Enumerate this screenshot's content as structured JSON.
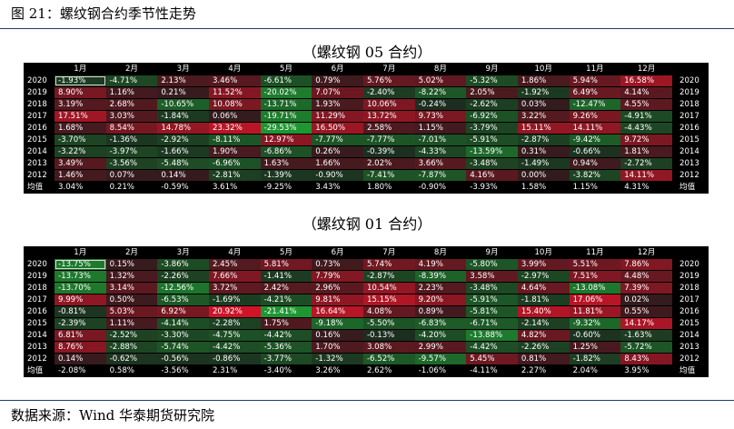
{
  "figure": {
    "title": "图 21：螺纹钢合约季节性走势",
    "source": "数据来源：Wind  华泰期货研究院"
  },
  "months": [
    "1月",
    "2月",
    "3月",
    "4月",
    "5月",
    "6月",
    "7月",
    "8月",
    "9月",
    "10月",
    "11月",
    "12月"
  ],
  "tables": [
    {
      "title": "（螺纹钢 05 合约）",
      "rows": [
        {
          "year": "2020",
          "vals": [
            -1.93,
            -4.71,
            2.13,
            3.46,
            -6.61,
            0.79,
            5.76,
            5.02,
            -5.32,
            1.86,
            5.94,
            16.58
          ],
          "labels": [
            "-1.93%",
            "-4.71%",
            "2.13%",
            "3.46%",
            "-6.61%",
            "0.79%",
            "5.76%",
            "5.02%",
            "-5.32%",
            "1.86%",
            "5.94%",
            "16.58%"
          ]
        },
        {
          "year": "2019",
          "vals": [
            8.9,
            1.16,
            0.21,
            11.52,
            -20.02,
            7.07,
            -2.4,
            -8.22,
            2.05,
            -1.92,
            6.49,
            4.14
          ],
          "labels": [
            "8.90%",
            "1.16%",
            "0.21%",
            "11.52%",
            "-20.02%",
            "7.07%",
            "-2.40%",
            "-8.22%",
            "2.05%",
            "-1.92%",
            "6.49%",
            "4.14%"
          ]
        },
        {
          "year": "2018",
          "vals": [
            3.19,
            2.68,
            -10.65,
            10.08,
            -13.71,
            1.93,
            10.06,
            -0.24,
            -2.62,
            0.03,
            -12.47,
            4.55
          ],
          "labels": [
            "3.19%",
            "2.68%",
            "-10.65%",
            "10.08%",
            "-13.71%",
            "1.93%",
            "10.06%",
            "-0.24%",
            "-2.62%",
            "0.03%",
            "-12.47%",
            "4.55%"
          ]
        },
        {
          "year": "2017",
          "vals": [
            17.51,
            3.03,
            -1.84,
            0.06,
            -19.71,
            11.29,
            13.72,
            9.73,
            -6.92,
            3.22,
            9.26,
            -4.91
          ],
          "labels": [
            "17.51%",
            "3.03%",
            "-1.84%",
            "0.06%",
            "-19.71%",
            "11.29%",
            "13.72%",
            "9.73%",
            "-6.92%",
            "3.22%",
            "9.26%",
            "-4.91%"
          ]
        },
        {
          "year": "2016",
          "vals": [
            1.68,
            8.54,
            14.78,
            23.32,
            -29.53,
            16.5,
            2.58,
            1.15,
            -3.79,
            15.11,
            14.11,
            -4.43
          ],
          "labels": [
            "1.68%",
            "8.54%",
            "14.78%",
            "23.32%",
            "-29.53%",
            "16.50%",
            "2.58%",
            "1.15%",
            "-3.79%",
            "15.11%",
            "14.11%",
            "-4.43%"
          ]
        },
        {
          "year": "2015",
          "vals": [
            -3.7,
            -1.36,
            -2.92,
            -8.11,
            12.97,
            -7.77,
            -7.77,
            -7.01,
            -5.91,
            -2.87,
            -9.42,
            9.72
          ],
          "labels": [
            "-3.70%",
            "-1.36%",
            "-2.92%",
            "-8.11%",
            "12.97%",
            "-7.77%",
            "-7.77%",
            "-7.01%",
            "-5.91%",
            "-2.87%",
            "-9.42%",
            "9.72%"
          ]
        },
        {
          "year": "2014",
          "vals": [
            -3.22,
            -3.97,
            -1.66,
            1.9,
            -6.86,
            0.26,
            -0.39,
            -4.33,
            -13.59,
            0.31,
            -0.66,
            1.81
          ],
          "labels": [
            "-3.22%",
            "-3.97%",
            "-1.66%",
            "1.90%",
            "-6.86%",
            "0.26%",
            "-0.39%",
            "-4.33%",
            "-13.59%",
            "0.31%",
            "-0.66%",
            "1.81%"
          ]
        },
        {
          "year": "2013",
          "vals": [
            3.49,
            -3.56,
            -5.48,
            -6.96,
            1.63,
            1.66,
            2.02,
            3.66,
            -3.48,
            -1.49,
            0.94,
            -2.72
          ],
          "labels": [
            "3.49%",
            "-3.56%",
            "-5.48%",
            "-6.96%",
            "1.63%",
            "1.66%",
            "2.02%",
            "3.66%",
            "-3.48%",
            "-1.49%",
            "0.94%",
            "-2.72%"
          ]
        },
        {
          "year": "2012",
          "vals": [
            1.46,
            0.07,
            0.14,
            -2.81,
            -1.39,
            -0.9,
            -7.41,
            -7.87,
            4.16,
            0.0,
            -3.82,
            14.11
          ],
          "labels": [
            "1.46%",
            "0.07%",
            "0.14%",
            "-2.81%",
            "-1.39%",
            "-0.90%",
            "-7.41%",
            "-7.87%",
            "4.16%",
            "0.00%",
            "-3.82%",
            "14.11%"
          ]
        }
      ],
      "avg": {
        "year": "均值",
        "labels": [
          "3.04%",
          "0.21%",
          "-0.59%",
          "3.61%",
          "-9.25%",
          "3.43%",
          "1.80%",
          "-0.90%",
          "-3.93%",
          "1.58%",
          "1.15%",
          "4.31%"
        ]
      }
    },
    {
      "title": "（螺纹钢 01 合约）",
      "rows": [
        {
          "year": "2020",
          "vals": [
            -13.75,
            0.15,
            -3.86,
            2.45,
            5.81,
            0.73,
            5.74,
            4.19,
            -5.8,
            3.99,
            5.51,
            7.86
          ],
          "labels": [
            "-13.75%",
            "0.15%",
            "-3.86%",
            "2.45%",
            "5.81%",
            "0.73%",
            "5.74%",
            "4.19%",
            "-5.80%",
            "3.99%",
            "5.51%",
            "7.86%"
          ]
        },
        {
          "year": "2019",
          "vals": [
            -13.73,
            1.32,
            -2.26,
            7.66,
            -1.41,
            7.79,
            -2.87,
            -8.39,
            3.58,
            -2.97,
            7.51,
            4.48
          ],
          "labels": [
            "-13.73%",
            "1.32%",
            "-2.26%",
            "7.66%",
            "-1.41%",
            "7.79%",
            "-2.87%",
            "-8.39%",
            "3.58%",
            "-2.97%",
            "7.51%",
            "4.48%"
          ]
        },
        {
          "year": "2018",
          "vals": [
            -13.7,
            3.14,
            -12.56,
            3.72,
            2.42,
            2.96,
            10.54,
            2.23,
            -3.48,
            4.64,
            -13.08,
            7.39
          ],
          "labels": [
            "-13.70%",
            "3.14%",
            "-12.56%",
            "3.72%",
            "2.42%",
            "2.96%",
            "10.54%",
            "2.23%",
            "-3.48%",
            "4.64%",
            "-13.08%",
            "7.39%"
          ]
        },
        {
          "year": "2017",
          "vals": [
            9.99,
            0.5,
            -6.53,
            -1.69,
            -4.21,
            9.81,
            15.15,
            9.2,
            -5.91,
            -1.81,
            17.06,
            0.02
          ],
          "labels": [
            "9.99%",
            "0.50%",
            "-6.53%",
            "-1.69%",
            "-4.21%",
            "9.81%",
            "15.15%",
            "9.20%",
            "-5.91%",
            "-1.81%",
            "17.06%",
            "0.02%"
          ]
        },
        {
          "year": "2016",
          "vals": [
            -0.81,
            5.03,
            6.92,
            20.92,
            -21.41,
            16.64,
            4.08,
            0.89,
            -5.81,
            15.4,
            11.81,
            0.55
          ],
          "labels": [
            "-0.81%",
            "5.03%",
            "6.92%",
            "20.92%",
            "-21.41%",
            "16.64%",
            "4.08%",
            "0.89%",
            "-5.81%",
            "15.40%",
            "11.81%",
            "0.55%"
          ]
        },
        {
          "year": "2015",
          "vals": [
            -2.39,
            1.11,
            -4.14,
            -2.28,
            1.75,
            -9.18,
            -5.5,
            -6.83,
            -6.71,
            -2.14,
            -9.32,
            14.17
          ],
          "labels": [
            "-2.39%",
            "1.11%",
            "-4.14%",
            "-2.28%",
            "1.75%",
            "-9.18%",
            "-5.50%",
            "-6.83%",
            "-6.71%",
            "-2.14%",
            "-9.32%",
            "14.17%"
          ]
        },
        {
          "year": "2014",
          "vals": [
            6.81,
            -2.52,
            -3.3,
            -4.75,
            -4.42,
            0.16,
            -0.13,
            -4.2,
            -13.88,
            4.82,
            -0.6,
            -1.63
          ],
          "labels": [
            "6.81%",
            "-2.52%",
            "-3.30%",
            "-4.75%",
            "-4.42%",
            "0.16%",
            "-0.13%",
            "-4.20%",
            "-13.88%",
            "4.82%",
            "-0.60%",
            "-1.63%"
          ]
        },
        {
          "year": "2013",
          "vals": [
            8.76,
            -2.88,
            -5.74,
            -4.42,
            -5.36,
            1.7,
            3.08,
            2.99,
            -4.42,
            -2.26,
            1.25,
            -5.72
          ],
          "labels": [
            "8.76%",
            "-2.88%",
            "-5.74%",
            "-4.42%",
            "-5.36%",
            "1.70%",
            "3.08%",
            "2.99%",
            "-4.42%",
            "-2.26%",
            "1.25%",
            "-5.72%"
          ]
        },
        {
          "year": "2012",
          "vals": [
            0.14,
            -0.62,
            -0.56,
            -0.86,
            -3.77,
            -1.32,
            -6.52,
            -9.57,
            5.45,
            0.81,
            -1.82,
            8.43
          ],
          "labels": [
            "0.14%",
            "-0.62%",
            "-0.56%",
            "-0.86%",
            "-3.77%",
            "-1.32%",
            "-6.52%",
            "-9.57%",
            "5.45%",
            "0.81%",
            "-1.82%",
            "8.43%"
          ]
        }
      ],
      "avg": {
        "year": "均值",
        "labels": [
          "-2.08%",
          "0.58%",
          "-3.56%",
          "2.31%",
          "-3.40%",
          "3.26%",
          "2.62%",
          "-1.06%",
          "-4.11%",
          "2.27%",
          "2.04%",
          "3.95%"
        ]
      }
    }
  ],
  "colors": {
    "positive": "#c8102e",
    "negative": "#1e8a2e",
    "neutral": "#1c1c1c",
    "positive_light": "#ffffff",
    "frame": "#000000"
  }
}
